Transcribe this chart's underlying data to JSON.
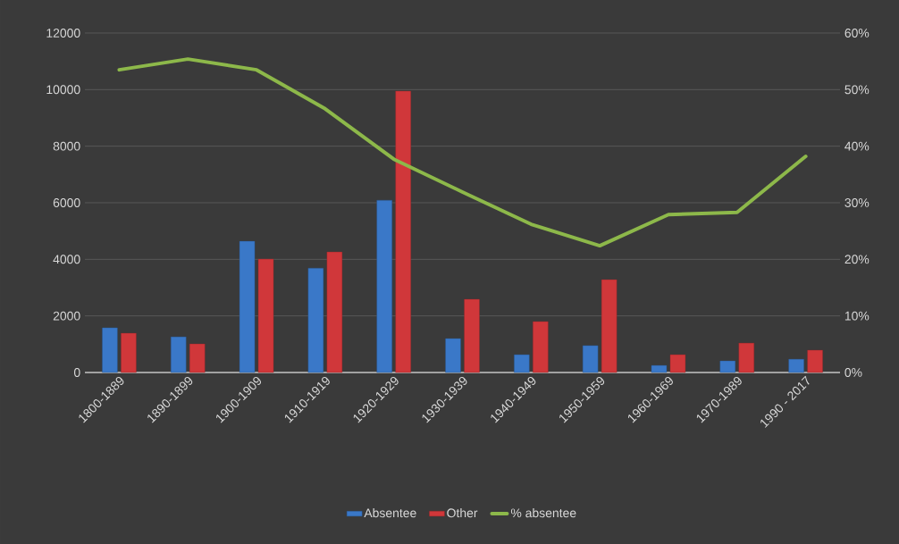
{
  "chart_data": {
    "type": "bar",
    "categories": [
      "1800-1889",
      "1890-1899",
      "1900-1909",
      "1910-1919",
      "1920-1929",
      "1930-1939",
      "1940-1949",
      "1950-1959",
      "1960-1969",
      "1970-1989",
      "1990 - 2017"
    ],
    "series": [
      {
        "name": "Absentee",
        "color": "#3a78c8",
        "values": [
          1580,
          1260,
          4640,
          3690,
          6090,
          1200,
          630,
          950,
          250,
          410,
          470
        ]
      },
      {
        "name": "Other",
        "color": "#d0373a",
        "values": [
          1390,
          1010,
          4010,
          4260,
          9950,
          2590,
          1800,
          3280,
          630,
          1040,
          790
        ]
      },
      {
        "name": "% absentee",
        "type": "line",
        "axis": "y2",
        "color": "#8db84a",
        "values": [
          53.5,
          55.4,
          53.5,
          46.6,
          37.7,
          31.9,
          26.2,
          22.4,
          27.9,
          28.3,
          38.2
        ]
      }
    ],
    "ylim": [
      0,
      12000
    ],
    "yticks": [
      0,
      2000,
      4000,
      6000,
      8000,
      10000,
      12000
    ],
    "y2lim": [
      0,
      60
    ],
    "y2ticks": [
      {
        "value": 0,
        "label": "0%"
      },
      {
        "value": 10,
        "label": "10%"
      },
      {
        "value": 20,
        "label": "20%"
      },
      {
        "value": 30,
        "label": "30%"
      },
      {
        "value": 40,
        "label": "40%"
      },
      {
        "value": 50,
        "label": "50%"
      },
      {
        "value": 60,
        "label": "60%"
      }
    ],
    "grid": "y",
    "legend": "bottom"
  }
}
